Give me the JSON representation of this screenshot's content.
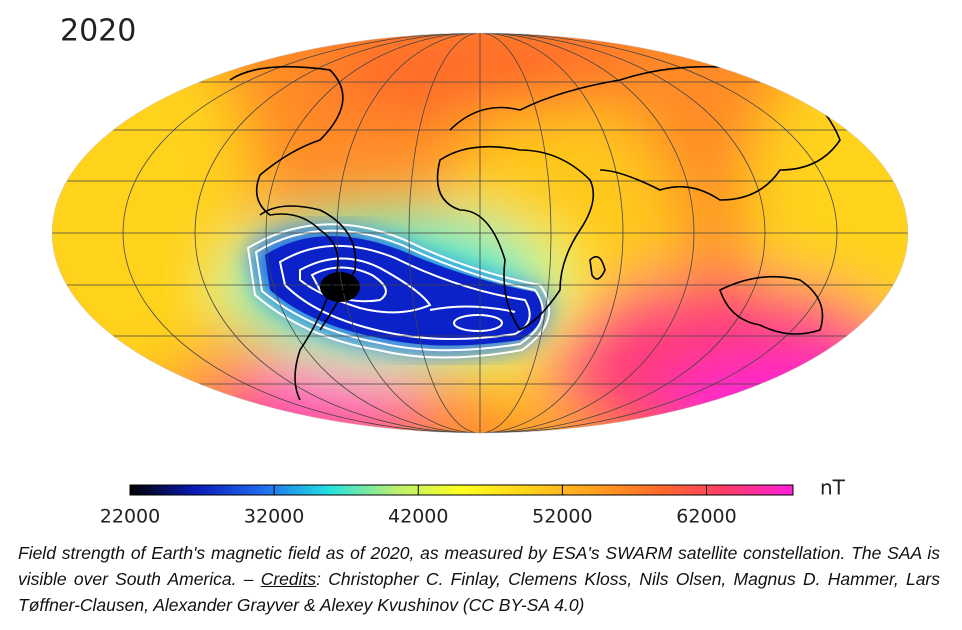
{
  "title": "2020",
  "colorbar": {
    "unit": "nT",
    "lim": [
      22000,
      68000
    ],
    "ticks": [
      22000,
      32000,
      42000,
      52000,
      62000
    ],
    "colors": [
      "#000000",
      "#0a1ab8",
      "#1f6cf0",
      "#22e0e0",
      "#b8f070",
      "#ffff20",
      "#ffd21a",
      "#ffa020",
      "#ff6a2a",
      "#ff3a6a",
      "#ff20d8"
    ]
  },
  "caption": {
    "text": "Field strength of Earth's magnetic field as of 2020, as measured by ESA's SWARM satellite constellation. The SAA is visible over South America. – ",
    "link": "Credits",
    "credits": ": Christopher C. Finlay, Clemens Kloss, Nils Olsen, Magnus D. Hammer, Lars Tøffner-Clausen, Alexander Grayver & Alexey Kvushinov (CC BY-SA 4.0)"
  }
}
